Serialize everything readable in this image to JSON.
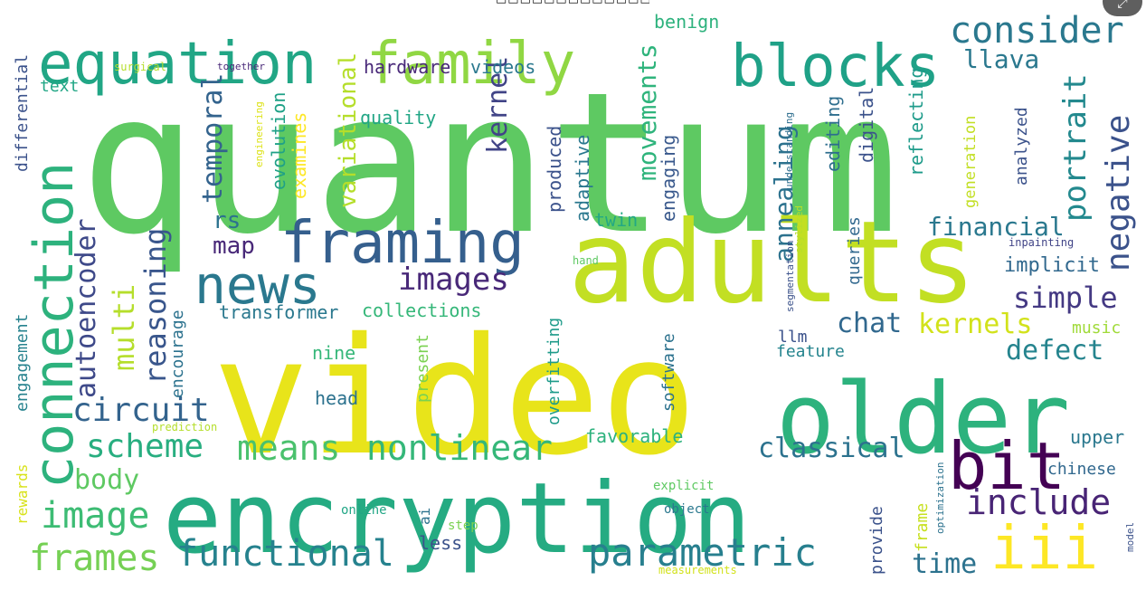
{
  "header": {
    "caption": "□□□□□□□□□□□□□□□□□"
  },
  "toolbar": {
    "expand_icon": "expand-icon",
    "expand_glyph": "⤢"
  },
  "palette": {
    "yellow": "#f0e51c",
    "yellowgreen": "#c7e020",
    "lightgreen": "#75d054",
    "green": "#5ec962",
    "teal": "#21a685",
    "tealblue": "#2a788e",
    "blue": "#355f8d",
    "indigo": "#443983",
    "purple": "#481f70"
  },
  "words": [
    {
      "text": "quantum",
      "color": "#5ec962"
    },
    {
      "text": "video",
      "color": "#e8e41a"
    },
    {
      "text": "encryption",
      "color": "#25ab82"
    },
    {
      "text": "adults",
      "color": "#c2df23"
    },
    {
      "text": "older",
      "color": "#2db27d"
    },
    {
      "text": "equation",
      "color": "#21a685"
    },
    {
      "text": "family",
      "color": "#90d743"
    },
    {
      "text": "blocks",
      "color": "#1fa187"
    },
    {
      "text": "consider",
      "color": "#2a788e"
    },
    {
      "text": "framing",
      "color": "#355f8d"
    },
    {
      "text": "news",
      "color": "#2a788e"
    },
    {
      "text": "connection",
      "color": "#2db27d"
    },
    {
      "text": "bit",
      "color": "#440154"
    },
    {
      "text": "include",
      "color": "#482475"
    },
    {
      "text": "iii",
      "color": "#fde725"
    },
    {
      "text": "parametric",
      "color": "#277f8e"
    },
    {
      "text": "functional",
      "color": "#26828e"
    },
    {
      "text": "frames",
      "color": "#75d054"
    },
    {
      "text": "image",
      "color": "#3dbc74"
    },
    {
      "text": "means",
      "color": "#4ac16d"
    },
    {
      "text": "nonlinear",
      "color": "#35b779"
    },
    {
      "text": "scheme",
      "color": "#28ae80"
    },
    {
      "text": "circuit",
      "color": "#33638d"
    },
    {
      "text": "body",
      "color": "#5ec962"
    },
    {
      "text": "classical",
      "color": "#2c728e"
    },
    {
      "text": "negative",
      "color": "#3b528b"
    },
    {
      "text": "portrait",
      "color": "#23898e"
    },
    {
      "text": "simple",
      "color": "#443983"
    },
    {
      "text": "kernels",
      "color": "#d2e21b"
    },
    {
      "text": "defect",
      "color": "#25848e"
    },
    {
      "text": "chat",
      "color": "#31688e"
    },
    {
      "text": "financial",
      "color": "#2a788e"
    },
    {
      "text": "implicit",
      "color": "#31688e"
    },
    {
      "text": "images",
      "color": "#482878"
    },
    {
      "text": "multi",
      "color": "#b5de2b"
    },
    {
      "text": "reasoning",
      "color": "#39568c"
    },
    {
      "text": "autoencoder",
      "color": "#3e4989"
    },
    {
      "text": "temporal",
      "color": "#33638d"
    },
    {
      "text": "variational",
      "color": "#b5de2b"
    },
    {
      "text": "kernel",
      "color": "#414487"
    },
    {
      "text": "movements",
      "color": "#2fb47c"
    },
    {
      "text": "annealing",
      "color": "#2c728e"
    },
    {
      "text": "llava",
      "color": "#2a788e"
    },
    {
      "text": "map",
      "color": "#482878"
    },
    {
      "text": "rs",
      "color": "#2c728e"
    },
    {
      "text": "transformer",
      "color": "#2a788e"
    },
    {
      "text": "collections",
      "color": "#35b779"
    },
    {
      "text": "hardware",
      "color": "#482878"
    },
    {
      "text": "videos",
      "color": "#2a788e"
    },
    {
      "text": "benign",
      "color": "#2db27d"
    },
    {
      "text": "quality",
      "color": "#21a685"
    },
    {
      "text": "examines",
      "color": "#fde725"
    },
    {
      "text": "evolution",
      "color": "#1fa187"
    },
    {
      "text": "produced",
      "color": "#3b528b"
    },
    {
      "text": "adaptive",
      "color": "#2a788e"
    },
    {
      "text": "twin",
      "color": "#22a884"
    },
    {
      "text": "engaging",
      "color": "#38588c"
    },
    {
      "text": "editing",
      "color": "#2e6e8e"
    },
    {
      "text": "digital",
      "color": "#3b528b"
    },
    {
      "text": "reflecting",
      "color": "#1e9b8a"
    },
    {
      "text": "generation",
      "color": "#c2df23"
    },
    {
      "text": "analyzed",
      "color": "#3b528b"
    },
    {
      "text": "understanding",
      "color": "#2e6e8e"
    },
    {
      "text": "queries",
      "color": "#31688e"
    },
    {
      "text": "stylized",
      "color": "#b5de2b"
    },
    {
      "text": "segmentation",
      "color": "#3b528b"
    },
    {
      "text": "inpainting",
      "color": "#414487"
    },
    {
      "text": "music",
      "color": "#a0da39"
    },
    {
      "text": "feature",
      "color": "#25848e"
    },
    {
      "text": "llm",
      "color": "#3b528b"
    },
    {
      "text": "software",
      "color": "#2c728e"
    },
    {
      "text": "overfitting",
      "color": "#1e9b8a"
    },
    {
      "text": "present",
      "color": "#7ad151"
    },
    {
      "text": "encourage",
      "color": "#2c728e"
    },
    {
      "text": "head",
      "color": "#2c728e"
    },
    {
      "text": "nine",
      "color": "#35b779"
    },
    {
      "text": "favorable",
      "color": "#2db27d"
    },
    {
      "text": "engagement",
      "color": "#26828e"
    },
    {
      "text": "differential",
      "color": "#3b528b"
    },
    {
      "text": "text",
      "color": "#21a685"
    },
    {
      "text": "surgical",
      "color": "#b5de2b"
    },
    {
      "text": "together",
      "color": "#482878"
    },
    {
      "text": "engineering",
      "color": "#dde318"
    },
    {
      "text": "rewards",
      "color": "#d8e219"
    },
    {
      "text": "prediction",
      "color": "#b5de2b"
    },
    {
      "text": "hand",
      "color": "#5ec962"
    },
    {
      "text": "explicit",
      "color": "#5ec962"
    },
    {
      "text": "object",
      "color": "#2a788e"
    },
    {
      "text": "online",
      "color": "#21a685"
    },
    {
      "text": "ai",
      "color": "#2c728e"
    },
    {
      "text": "step",
      "color": "#7ad151"
    },
    {
      "text": "less",
      "color": "#3b528b"
    },
    {
      "text": "measurements",
      "color": "#d2e21b"
    },
    {
      "text": "upper",
      "color": "#2a788e"
    },
    {
      "text": "chinese",
      "color": "#31688e"
    },
    {
      "text": "model",
      "color": "#3b528b"
    },
    {
      "text": "optimization",
      "color": "#2c728e"
    },
    {
      "text": "provide",
      "color": "#3b528b"
    },
    {
      "text": "frame",
      "color": "#c7e020"
    },
    {
      "text": "time",
      "color": "#2c728e"
    }
  ]
}
